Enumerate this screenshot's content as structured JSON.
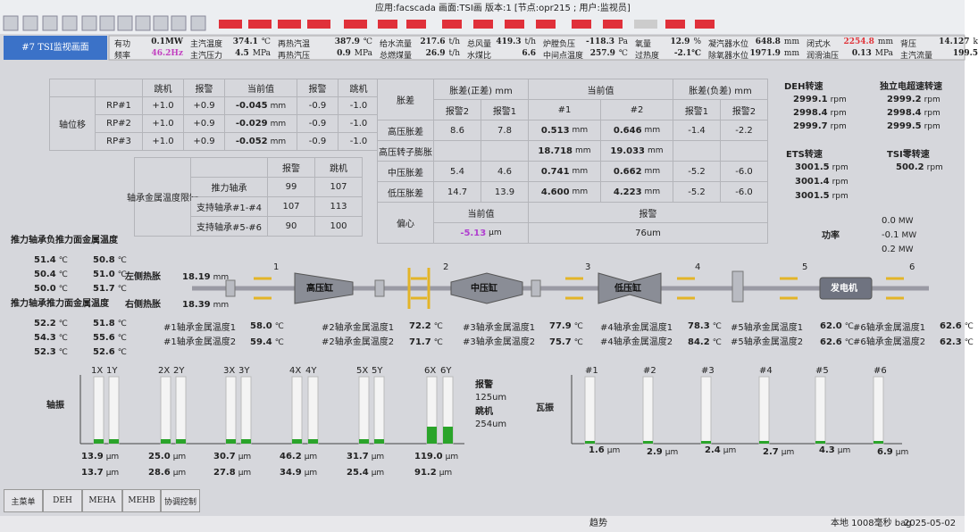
{
  "toolbar": {
    "info": "应用:facscada 画面:TSI画 版本:1 [节点:opr215 ; 用户:监视员]"
  },
  "header": {
    "title": "#7 TSI监视画面"
  },
  "status": {
    "row1": [
      {
        "label": "有功",
        "value": "0.1MW"
      },
      {
        "label": "主汽温度",
        "value": "374.1",
        "unit": "℃"
      },
      {
        "label": "再热汽温",
        "value": "387.9",
        "unit": "℃"
      },
      {
        "label": "给水流量",
        "value": "217.6",
        "unit": "t/h"
      },
      {
        "label": "总风量",
        "value": "419.3",
        "unit": "t/h"
      },
      {
        "label": "炉膛负压",
        "value": "-118.3",
        "unit": "Pa"
      },
      {
        "label": "氧量",
        "value": "12.9",
        "unit": "%"
      },
      {
        "label": "凝汽器水位",
        "value": "648.8",
        "unit": "mm"
      },
      {
        "label": "闭式水",
        "value": "2254.8",
        "unit": "mm"
      },
      {
        "label": "背压",
        "value": "14.127",
        "unit": "k"
      }
    ],
    "row2": [
      {
        "label": "频率",
        "value": "46.2Hz"
      },
      {
        "label": "主汽压力",
        "value": "4.5",
        "unit": "MPa"
      },
      {
        "label": "再热汽压",
        "value": "0.9",
        "unit": "MPa"
      },
      {
        "label": "总燃煤量",
        "value": "26.9",
        "unit": "t/h"
      },
      {
        "label": "水煤比",
        "value": "6.6"
      },
      {
        "label": "中间点温度",
        "value": "257.9",
        "unit": "℃"
      },
      {
        "label": "过热度",
        "value": "-2.1℃"
      },
      {
        "label": "除氧器水位",
        "value": "1971.9",
        "unit": "mm"
      },
      {
        "label": "润滑油压",
        "value": "0.13",
        "unit": "MPa"
      },
      {
        "label": "主汽流量",
        "value": "199.5"
      }
    ]
  },
  "units": {
    "mm": "mm",
    "c": "℃",
    "um": "µm",
    "rpm": "rpm",
    "mw": "MW"
  },
  "axial": {
    "label": "轴位移",
    "headers": [
      "跳机",
      "报警",
      "当前值",
      "报警",
      "跳机"
    ],
    "rows": [
      [
        "RP#1",
        "+1.0",
        "+0.9",
        "-0.045",
        "-0.9",
        "-1.0"
      ],
      [
        "RP#2",
        "+1.0",
        "+0.9",
        "-0.029",
        "-0.9",
        "-1.0"
      ],
      [
        "RP#3",
        "+1.0",
        "+0.9",
        "-0.052",
        "-0.9",
        "-1.0"
      ]
    ]
  },
  "limits": {
    "label": "轴承金属温度限制",
    "headers": [
      "报警",
      "跳机"
    ],
    "rows": [
      [
        "推力轴承",
        "99",
        "107"
      ],
      [
        "支持轴承#1-#4",
        "107",
        "113"
      ],
      [
        "支持轴承#5-#6",
        "90",
        "100"
      ]
    ]
  },
  "expansion": {
    "label": "胀差",
    "pos": "胀差(正差) mm",
    "cur": "当前值",
    "neg": "胀差(负差) mm",
    "sub": [
      "报警2",
      "报警1",
      "#1",
      "#2",
      "报警1",
      "报警2"
    ],
    "rows": [
      [
        "高压胀差",
        "8.6",
        "7.8",
        "0.513",
        "0.646",
        "-1.4",
        "-2.2"
      ],
      [
        "中压胀差",
        "5.4",
        "4.6",
        "0.741",
        "0.662",
        "-5.2",
        "-6.0"
      ],
      [
        "低压胀差",
        "14.7",
        "13.9",
        "4.600",
        "4.223",
        "-5.2",
        "-6.0"
      ]
    ],
    "rotor": {
      "label": "高压转子膨胀",
      "values": [
        "18.718",
        "19.033"
      ]
    },
    "ecc": {
      "label": "偏心",
      "cur": "当前值",
      "alarm": "报警",
      "value": "-5.13",
      "alarm_value": "76um"
    }
  },
  "speeds": {
    "deh": {
      "label": "DEH转速",
      "values": [
        "2999.1",
        "2998.4",
        "2999.7"
      ]
    },
    "ovs": {
      "label": "独立电超速转速",
      "values": [
        "2999.2",
        "2998.4",
        "2999.5"
      ]
    },
    "ets": {
      "label": "ETS转速",
      "values": [
        "3001.5",
        "3001.4",
        "3001.5"
      ]
    },
    "zero": {
      "label": "TSI零转速",
      "values": [
        "500.2"
      ]
    },
    "power": {
      "label": "功率",
      "values": [
        "0.0",
        "-0.1",
        "0.2"
      ]
    }
  },
  "thrust": {
    "neg": {
      "label": "推力轴承负推力面金属温度",
      "values": [
        [
          "51.4",
          "50.8"
        ],
        [
          "50.4",
          "51.0"
        ],
        [
          "50.0",
          "51.7"
        ]
      ]
    },
    "pos": {
      "label": "推力轴承推力面金属温度",
      "values": [
        [
          "52.2",
          "51.8"
        ],
        [
          "54.3",
          "55.6"
        ],
        [
          "52.3",
          "52.6"
        ]
      ]
    }
  },
  "heat": {
    "left": {
      "label": "左侧热胀",
      "value": "18.19"
    },
    "right": {
      "label": "右侧热胀",
      "value": "18.39"
    }
  },
  "turbine": {
    "casings": [
      "高压缸",
      "中压缸",
      "低压缸",
      "发电机"
    ],
    "bearings": [
      "1",
      "2",
      "3",
      "4",
      "5",
      "6"
    ]
  },
  "bearing_temps": [
    {
      "labels": [
        "#1轴承金属温度1",
        "#1轴承金属温度2"
      ],
      "values": [
        "58.0",
        "59.4"
      ]
    },
    {
      "labels": [
        "#2轴承金属温度1",
        "#2轴承金属温度2"
      ],
      "values": [
        "72.2",
        "71.7"
      ]
    },
    {
      "labels": [
        "#3轴承金属温度1",
        "#3轴承金属温度2"
      ],
      "values": [
        "77.9",
        "75.7"
      ]
    },
    {
      "labels": [
        "#4轴承金属温度1",
        "#4轴承金属温度2"
      ],
      "values": [
        "78.3",
        "84.2"
      ]
    },
    {
      "labels": [
        "#5轴承金属温度1",
        "#5轴承金属温度2"
      ],
      "values": [
        "62.0",
        "62.6"
      ]
    },
    {
      "labels": [
        "#6轴承金属温度1",
        "#6轴承金属温度2"
      ],
      "values": [
        "62.6",
        "62.3"
      ]
    }
  ],
  "shaft_vib": {
    "label": "轴振",
    "probes": [
      "1X",
      "1Y",
      "2X",
      "2Y",
      "3X",
      "3Y",
      "4X",
      "4Y",
      "5X",
      "5Y",
      "6X",
      "6Y"
    ],
    "values": [
      "13.9",
      "13.7",
      "25.0",
      "28.6",
      "30.7",
      "27.8",
      "46.2",
      "34.9",
      "31.7",
      "25.4",
      "119.0",
      "91.2"
    ],
    "alarm_label": "报警",
    "alarm": "125um",
    "trip_label": "跳机",
    "trip": "254um"
  },
  "bearing_vib": {
    "label": "瓦振",
    "probes": [
      "#1",
      "#2",
      "#3",
      "#4",
      "#5",
      "#6"
    ],
    "values": [
      "1.6",
      "2.9",
      "2.4",
      "2.7",
      "4.3",
      "6.9"
    ]
  },
  "nav": [
    "主菜单",
    "DEH",
    "MEHA",
    "MEHB",
    "协调控制"
  ],
  "footer": {
    "trend": "趋势",
    "status": "本地 1008毫秒 bag",
    "time": "2025-05-02"
  }
}
